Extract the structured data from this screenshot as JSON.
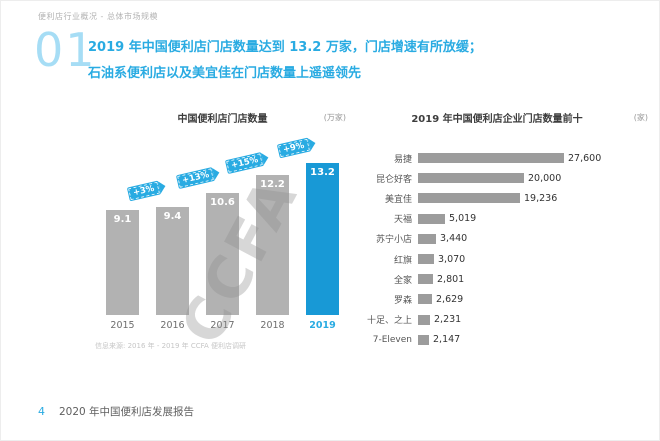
{
  "page": {
    "breadcrumb": "便利店行业概况 - 总体市场规模",
    "section_number": "01",
    "title_line1": "2019 年中国便利店门店数量达到 13.2 万家，门店增速有所放缓；",
    "title_line2": "石油系便利店以及美宜佳在门店数量上遥遥领先",
    "source_note": "信息来源: 2016 年 - 2019 年 CCFA 便利店调研",
    "footer_page": "4",
    "footer_text": "2020 年中国便利店发展报告"
  },
  "colors": {
    "accent_blue": "#29ABE2",
    "highlight_bar_blue": "#1899D6",
    "bar_gray": "#B2B2B2",
    "rank_bar_gray": "#9C9C9C"
  },
  "chart_data": [
    {
      "type": "bar",
      "title": "中国便利店门店数量",
      "unit": "(万家)",
      "categories": [
        "2015",
        "2016",
        "2017",
        "2018",
        "2019"
      ],
      "values": [
        9.1,
        9.4,
        10.6,
        12.2,
        13.2
      ],
      "growth_labels": [
        "+3%",
        "+13%",
        "+15%",
        "+9%"
      ],
      "highlight_index": 4,
      "watermark": "CCFA",
      "ylim": [
        0,
        15
      ],
      "grid": false,
      "legend": "none"
    },
    {
      "type": "bar",
      "orientation": "horizontal",
      "title": "2019 年中国便利店企业门店数量前十",
      "unit": "(家)",
      "categories": [
        "易捷",
        "昆仑好客",
        "美宜佳",
        "天福",
        "苏宁小店",
        "红旗",
        "全家",
        "罗森",
        "十足、之上",
        "7-Eleven"
      ],
      "values": [
        27600,
        20000,
        19236,
        5019,
        3440,
        3070,
        2801,
        2629,
        2231,
        2147
      ],
      "value_labels": [
        "27,600",
        "20,000",
        "19,236",
        "5,019",
        "3,440",
        "3,070",
        "2,801",
        "2,629",
        "2,231",
        "2,147"
      ],
      "xlim": [
        0,
        30000
      ],
      "grid": false
    }
  ]
}
